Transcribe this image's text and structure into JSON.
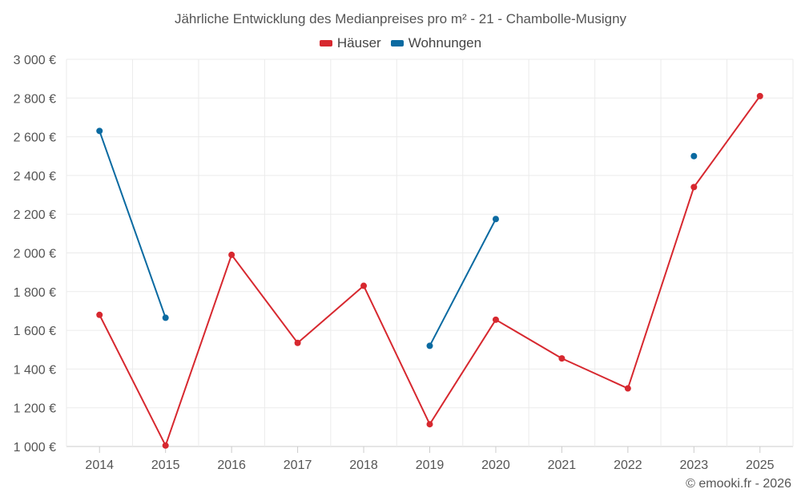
{
  "chart_data": {
    "type": "line",
    "title": "Jährliche Entwicklung des Medianpreises pro m² - 21 - Chambolle-Musigny",
    "categories": [
      "2014",
      "2015",
      "2016",
      "2017",
      "2018",
      "2019",
      "2020",
      "2021",
      "2022",
      "2023",
      "2025"
    ],
    "series": [
      {
        "name": "Häuser",
        "color": "#d7282f",
        "values": [
          1680,
          1005,
          1990,
          1535,
          1830,
          1115,
          1655,
          1455,
          1300,
          2340,
          2810
        ]
      },
      {
        "name": "Wohnungen",
        "color": "#0a6aa1",
        "values": [
          2630,
          1665,
          null,
          null,
          null,
          1520,
          2175,
          null,
          null,
          2500,
          null
        ]
      }
    ],
    "ylim": [
      1000,
      3000
    ],
    "yticks": [
      1000,
      1200,
      1400,
      1600,
      1800,
      2000,
      2200,
      2400,
      2600,
      2800,
      3000
    ],
    "ytick_labels": [
      "1 000 €",
      "1 200 €",
      "1 400 €",
      "1 600 €",
      "1 800 €",
      "2 000 €",
      "2 200 €",
      "2 400 €",
      "2 600 €",
      "2 800 €",
      "3 000 €"
    ],
    "grid": true,
    "legend_position": "top-center"
  },
  "credit": "© emooki.fr - 2026"
}
